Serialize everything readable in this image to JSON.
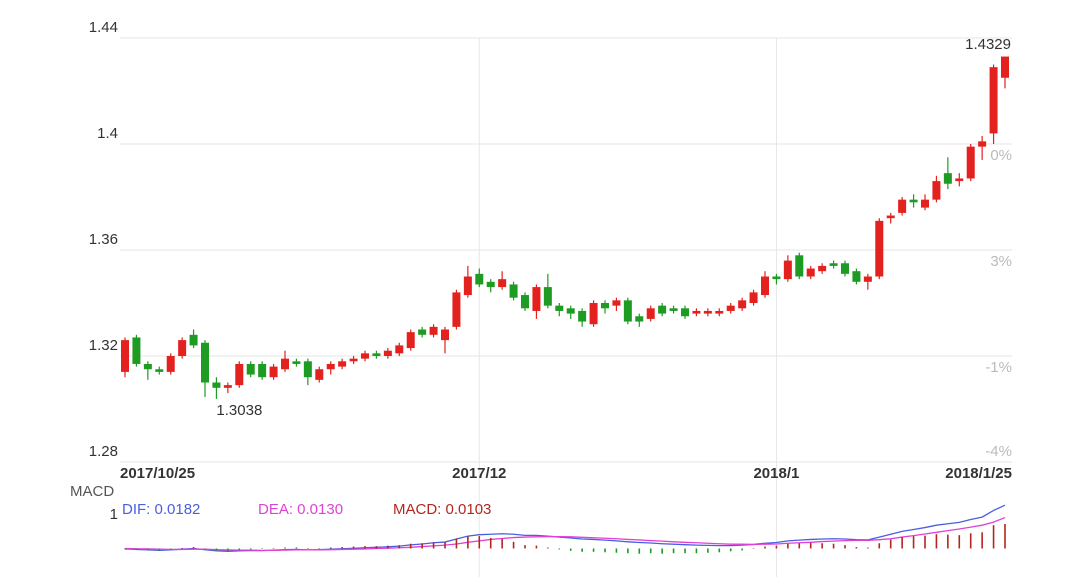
{
  "chart_data": [
    {
      "type": "candlestick",
      "categories": [
        "2017/10/25",
        null,
        null,
        null,
        null,
        null,
        null,
        null,
        null,
        null,
        null,
        null,
        null,
        null,
        null,
        null,
        null,
        null,
        null,
        null,
        null,
        null,
        null,
        null,
        null,
        null,
        null,
        null,
        null,
        null,
        null,
        "2017/12",
        null,
        null,
        null,
        null,
        null,
        null,
        null,
        null,
        null,
        null,
        null,
        null,
        null,
        null,
        null,
        null,
        null,
        null,
        null,
        null,
        null,
        null,
        null,
        null,
        null,
        "2018/1",
        null,
        null,
        null,
        null,
        null,
        null,
        null,
        null,
        null,
        null,
        null,
        null,
        null,
        null,
        null,
        null,
        null,
        null,
        null,
        "2018/1/25"
      ],
      "open": [
        1.314,
        1.327,
        1.317,
        1.315,
        1.314,
        1.32,
        1.328,
        1.325,
        1.31,
        1.308,
        1.309,
        1.317,
        1.317,
        1.312,
        1.315,
        1.318,
        1.318,
        1.311,
        1.315,
        1.316,
        1.318,
        1.319,
        1.321,
        1.32,
        1.321,
        1.323,
        1.33,
        1.328,
        1.326,
        1.331,
        1.343,
        1.351,
        1.348,
        1.346,
        1.347,
        1.343,
        1.337,
        1.346,
        1.339,
        1.338,
        1.337,
        1.332,
        1.34,
        1.339,
        1.341,
        1.335,
        1.334,
        1.339,
        1.338,
        1.338,
        1.336,
        1.336,
        1.336,
        1.337,
        1.338,
        1.34,
        1.343,
        1.35,
        1.349,
        1.358,
        1.35,
        1.352,
        1.355,
        1.355,
        1.352,
        1.348,
        1.35,
        1.372,
        1.374,
        1.379,
        1.376,
        1.379,
        1.389,
        1.386,
        1.387,
        1.399,
        1.404,
        1.425
      ],
      "high": [
        1.327,
        1.328,
        1.318,
        1.316,
        1.321,
        1.327,
        1.33,
        1.326,
        1.312,
        1.31,
        1.318,
        1.318,
        1.318,
        1.317,
        1.322,
        1.319,
        1.319,
        1.316,
        1.318,
        1.319,
        1.32,
        1.322,
        1.322,
        1.323,
        1.325,
        1.33,
        1.331,
        1.332,
        1.331,
        1.345,
        1.354,
        1.353,
        1.349,
        1.352,
        1.348,
        1.344,
        1.347,
        1.351,
        1.34,
        1.339,
        1.338,
        1.341,
        1.341,
        1.342,
        1.342,
        1.336,
        1.339,
        1.34,
        1.339,
        1.339,
        1.338,
        1.338,
        1.338,
        1.34,
        1.342,
        1.345,
        1.352,
        1.351,
        1.358,
        1.359,
        1.354,
        1.355,
        1.356,
        1.356,
        1.353,
        1.351,
        1.372,
        1.374,
        1.38,
        1.381,
        1.381,
        1.388,
        1.395,
        1.389,
        1.4,
        1.403,
        1.43,
        1.4329
      ],
      "low": [
        1.312,
        1.316,
        1.311,
        1.313,
        1.313,
        1.319,
        1.323,
        1.3045,
        1.3038,
        1.306,
        1.308,
        1.312,
        1.311,
        1.311,
        1.314,
        1.316,
        1.309,
        1.31,
        1.313,
        1.315,
        1.317,
        1.318,
        1.319,
        1.319,
        1.32,
        1.322,
        1.327,
        1.327,
        1.321,
        1.33,
        1.342,
        1.346,
        1.344,
        1.345,
        1.341,
        1.337,
        1.334,
        1.338,
        1.335,
        1.334,
        1.331,
        1.331,
        1.336,
        1.337,
        1.332,
        1.331,
        1.333,
        1.335,
        1.336,
        1.334,
        1.335,
        1.335,
        1.335,
        1.336,
        1.337,
        1.339,
        1.342,
        1.347,
        1.348,
        1.349,
        1.349,
        1.351,
        1.353,
        1.35,
        1.347,
        1.345,
        1.349,
        1.37,
        1.373,
        1.376,
        1.375,
        1.378,
        1.383,
        1.384,
        1.386,
        1.394,
        1.4,
        1.421
      ],
      "close": [
        1.326,
        1.317,
        1.315,
        1.314,
        1.32,
        1.326,
        1.324,
        1.31,
        1.308,
        1.309,
        1.317,
        1.313,
        1.312,
        1.316,
        1.319,
        1.317,
        1.312,
        1.315,
        1.317,
        1.318,
        1.319,
        1.321,
        1.32,
        1.322,
        1.324,
        1.329,
        1.328,
        1.331,
        1.33,
        1.344,
        1.35,
        1.347,
        1.346,
        1.349,
        1.342,
        1.338,
        1.346,
        1.339,
        1.337,
        1.336,
        1.333,
        1.34,
        1.338,
        1.341,
        1.333,
        1.333,
        1.338,
        1.336,
        1.337,
        1.335,
        1.337,
        1.337,
        1.337,
        1.339,
        1.341,
        1.344,
        1.35,
        1.349,
        1.356,
        1.35,
        1.353,
        1.354,
        1.354,
        1.351,
        1.348,
        1.35,
        1.371,
        1.373,
        1.379,
        1.378,
        1.379,
        1.386,
        1.385,
        1.387,
        1.399,
        1.401,
        1.429,
        1.433
      ],
      "up_color": "#e3211e",
      "down_color": "#1e9b22",
      "ylim": [
        1.28,
        1.44
      ],
      "yticks": [
        1.28,
        1.32,
        1.36,
        1.4,
        1.44
      ],
      "right_labels": [
        "-4%",
        "-1%",
        "3%",
        "0%"
      ],
      "high_label": "1.4329",
      "low_label": "1.3038",
      "grid": true
    },
    {
      "type": "macd",
      "ylabel": "MACD",
      "axis_note": "1",
      "ylim": [
        -0.012,
        0.0225
      ],
      "series": [
        {
          "name": "DIF: 0.0182",
          "color": "#4a5fe0",
          "kind": "line",
          "values": [
            -0.0002,
            -0.0004,
            -0.0006,
            -0.0008,
            -0.0006,
            -0.0003,
            0.0,
            -0.0005,
            -0.001,
            -0.0012,
            -0.001,
            -0.0009,
            -0.0009,
            -0.0007,
            -0.0005,
            -0.0004,
            -0.0006,
            -0.0005,
            -0.0003,
            -0.0001,
            0.0001,
            0.0003,
            0.0005,
            0.0007,
            0.001,
            0.0015,
            0.0019,
            0.0024,
            0.0027,
            0.004,
            0.0052,
            0.0058,
            0.006,
            0.0062,
            0.006,
            0.0055,
            0.0055,
            0.0052,
            0.0048,
            0.0044,
            0.004,
            0.0038,
            0.0035,
            0.0032,
            0.0028,
            0.0025,
            0.0023,
            0.002,
            0.0018,
            0.0016,
            0.0014,
            0.0013,
            0.0012,
            0.0012,
            0.0014,
            0.0017,
            0.0022,
            0.0025,
            0.0032,
            0.0035,
            0.0038,
            0.004,
            0.0041,
            0.004,
            0.0037,
            0.0036,
            0.0048,
            0.006,
            0.0072,
            0.008,
            0.0088,
            0.0098,
            0.0104,
            0.011,
            0.0122,
            0.0132,
            0.016,
            0.0182
          ]
        },
        {
          "name": "DEA: 0.0130",
          "color": "#e040d8",
          "kind": "line",
          "values": [
            0.0,
            -0.0001,
            -0.0002,
            -0.0003,
            -0.0004,
            -0.0004,
            -0.0003,
            -0.0003,
            -0.0005,
            -0.0006,
            -0.0007,
            -0.0007,
            -0.0008,
            -0.0008,
            -0.0007,
            -0.0006,
            -0.0006,
            -0.0006,
            -0.0005,
            -0.0004,
            -0.0003,
            -0.0002,
            0.0,
            0.0001,
            0.0003,
            0.0005,
            0.0008,
            0.0011,
            0.0014,
            0.0019,
            0.0026,
            0.0032,
            0.0038,
            0.0042,
            0.0046,
            0.0048,
            0.0049,
            0.005,
            0.005,
            0.0049,
            0.0047,
            0.0045,
            0.0043,
            0.0041,
            0.0038,
            0.0036,
            0.0033,
            0.0031,
            0.0028,
            0.0026,
            0.0024,
            0.0022,
            0.002,
            0.0018,
            0.0018,
            0.0017,
            0.0018,
            0.0019,
            0.0022,
            0.0024,
            0.0026,
            0.0029,
            0.0031,
            0.0033,
            0.0034,
            0.0034,
            0.0037,
            0.0041,
            0.0048,
            0.0054,
            0.0061,
            0.0068,
            0.0075,
            0.0082,
            0.009,
            0.0098,
            0.0111,
            0.013
          ]
        },
        {
          "name": "MACD: 0.0103",
          "color": "#b3261e",
          "kind": "bar",
          "down_color": "#1e9b22",
          "values": [
            -0.0004,
            -0.0006,
            -0.0008,
            -0.001,
            -0.0004,
            0.0002,
            0.0006,
            -0.0004,
            -0.001,
            -0.0012,
            -0.0006,
            -0.0004,
            -0.0002,
            0.0002,
            0.0004,
            0.0004,
            0.0,
            0.0002,
            0.0004,
            0.0006,
            0.0008,
            0.001,
            0.001,
            0.0012,
            0.0014,
            0.002,
            0.0022,
            0.0026,
            0.0026,
            0.0042,
            0.0052,
            0.0052,
            0.0044,
            0.004,
            0.0028,
            0.0014,
            0.0012,
            0.0004,
            -0.0004,
            -0.001,
            -0.0014,
            -0.0014,
            -0.0016,
            -0.0018,
            -0.002,
            -0.0022,
            -0.002,
            -0.0022,
            -0.002,
            -0.002,
            -0.002,
            -0.0018,
            -0.0016,
            -0.0012,
            -0.0008,
            0.0,
            0.0008,
            0.0012,
            0.002,
            0.0022,
            0.0024,
            0.0022,
            0.002,
            0.0014,
            0.0006,
            0.0004,
            0.0022,
            0.0038,
            0.0048,
            0.0052,
            0.0054,
            0.006,
            0.0058,
            0.0056,
            0.0064,
            0.0068,
            0.0098,
            0.0103
          ]
        }
      ]
    }
  ]
}
